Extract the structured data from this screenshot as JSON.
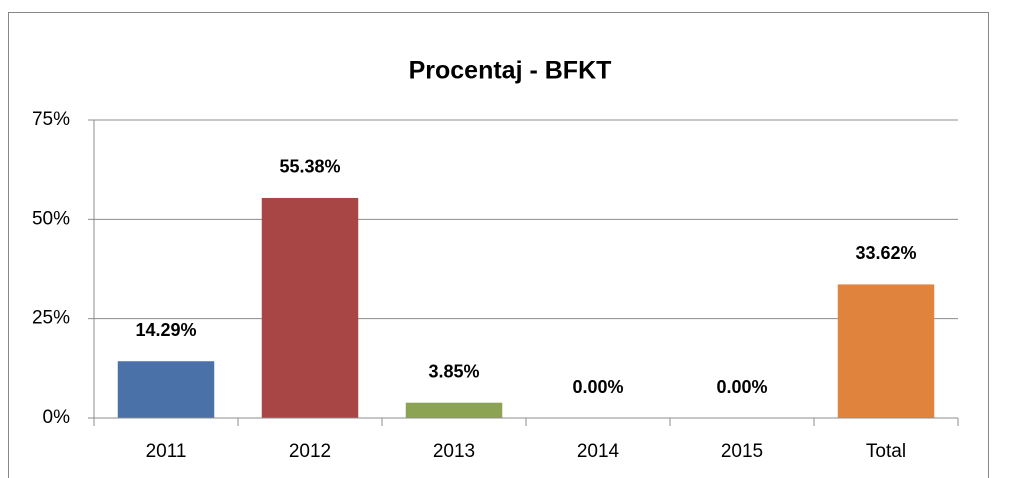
{
  "chart_data": {
    "type": "bar",
    "title": "Procentaj - BFKT",
    "categories": [
      "2011",
      "2012",
      "2013",
      "2014",
      "2015",
      "Total"
    ],
    "values": [
      14.29,
      55.38,
      3.85,
      0,
      0,
      33.62
    ],
    "value_labels": [
      "14.29%",
      "55.38%",
      "3.85%",
      "0.00%",
      "0.00%",
      "33.62%"
    ],
    "colors": [
      "#4a72a8",
      "#a84545",
      "#8ba353",
      "#7a5a9a",
      "#4aa0b8",
      "#e0833d"
    ],
    "ylim": [
      0,
      75
    ],
    "yticks": [
      {
        "value": 0,
        "label": "0%"
      },
      {
        "value": 25,
        "label": "25%"
      },
      {
        "value": 50,
        "label": "50%"
      },
      {
        "value": 75,
        "label": "75%"
      }
    ],
    "grid": true
  }
}
